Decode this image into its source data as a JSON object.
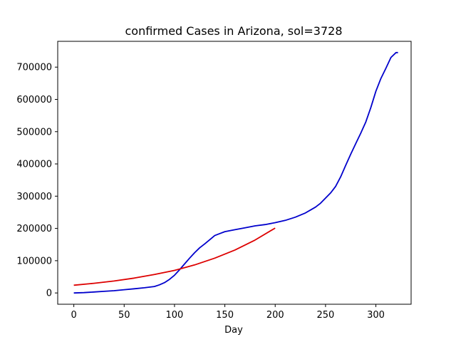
{
  "chart_data": {
    "type": "line",
    "title": "confirmed Cases in Arizona, sol=3728",
    "xlabel": "Day",
    "ylabel": "",
    "xlim": [
      -16,
      335
    ],
    "ylim": [
      -35000,
      780000
    ],
    "xticks": [
      0,
      50,
      100,
      150,
      200,
      250,
      300
    ],
    "yticks": [
      0,
      100000,
      200000,
      300000,
      400000,
      500000,
      600000,
      700000
    ],
    "grid": false,
    "legend": "none",
    "series": [
      {
        "color": "#0000cc",
        "x": [
          0,
          10,
          20,
          30,
          40,
          50,
          60,
          70,
          80,
          85,
          90,
          95,
          100,
          105,
          110,
          115,
          120,
          125,
          130,
          135,
          140,
          145,
          150,
          160,
          170,
          180,
          190,
          200,
          210,
          220,
          230,
          235,
          240,
          245,
          250,
          255,
          260,
          265,
          270,
          275,
          280,
          285,
          290,
          295,
          300,
          305,
          310,
          315,
          320,
          322
        ],
        "values": [
          0,
          1000,
          3000,
          5000,
          7000,
          10000,
          13000,
          16000,
          20000,
          25000,
          32000,
          42000,
          55000,
          72000,
          90000,
          108000,
          125000,
          140000,
          152000,
          165000,
          178000,
          184000,
          190000,
          196000,
          202000,
          208000,
          212000,
          218000,
          225000,
          235000,
          248000,
          257000,
          266000,
          278000,
          294000,
          310000,
          330000,
          360000,
          395000,
          430000,
          463000,
          495000,
          530000,
          575000,
          625000,
          665000,
          697000,
          730000,
          745000,
          745000
        ]
      },
      {
        "color": "#dd0000",
        "x": [
          0,
          20,
          40,
          60,
          80,
          100,
          120,
          140,
          160,
          180,
          200
        ],
        "values": [
          24000,
          30000,
          37000,
          46000,
          57000,
          70000,
          87000,
          108000,
          133000,
          164000,
          201000
        ]
      }
    ]
  }
}
